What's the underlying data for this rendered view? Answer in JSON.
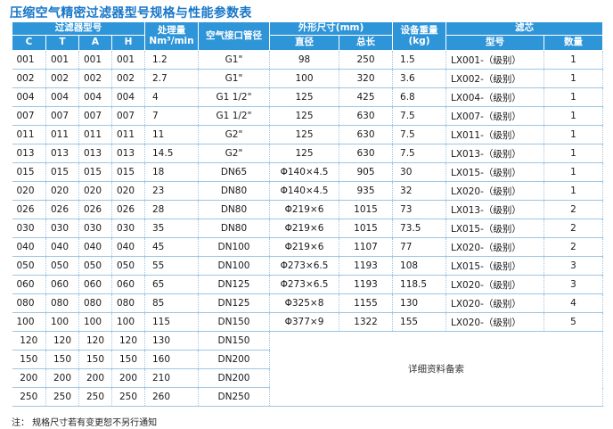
{
  "title": "压缩空气精密过滤器型号规格与性能参数表",
  "headers": {
    "filter_model": "过滤器型号",
    "flow": "处理量",
    "flow_unit": "Nm³/min",
    "port": "空气接口管径",
    "dimensions": "外形尺寸(mm)",
    "diameter": "直径",
    "length": "总长",
    "weight": "设备重量",
    "weight_unit": "(kg)",
    "element": "滤芯",
    "element_model": "型号",
    "element_qty": "数量",
    "c": "C",
    "t": "T",
    "a": "A",
    "h": "H"
  },
  "rows": [
    {
      "c": "001",
      "t": "001",
      "a": "001",
      "h": "001",
      "flow": "1.2",
      "port": "G1\"",
      "dia": "98",
      "len": "250",
      "wt": "1.5",
      "model": "LX001-（级别）",
      "qty": "1"
    },
    {
      "c": "002",
      "t": "002",
      "a": "002",
      "h": "002",
      "flow": "2.7",
      "port": "G1\"",
      "dia": "100",
      "len": "320",
      "wt": "3.6",
      "model": "LX002-（级别）",
      "qty": "1"
    },
    {
      "c": "004",
      "t": "004",
      "a": "004",
      "h": "004",
      "flow": "4",
      "port": "G1 1/2\"",
      "dia": "125",
      "len": "425",
      "wt": "6.8",
      "model": "LX004-（级别）",
      "qty": "1"
    },
    {
      "c": "007",
      "t": "007",
      "a": "007",
      "h": "007",
      "flow": "7",
      "port": "G1 1/2\"",
      "dia": "125",
      "len": "630",
      "wt": "7.5",
      "model": "LX007-（级别）",
      "qty": "1"
    },
    {
      "c": "011",
      "t": "011",
      "a": "011",
      "h": "011",
      "flow": "11",
      "port": "G2\"",
      "dia": "125",
      "len": "630",
      "wt": "7.5",
      "model": "LX011-（级别）",
      "qty": "1"
    },
    {
      "c": "013",
      "t": "013",
      "a": "013",
      "h": "013",
      "flow": "14.5",
      "port": "G2\"",
      "dia": "125",
      "len": "630",
      "wt": "7.5",
      "model": "LX013-（级别）",
      "qty": "1"
    },
    {
      "c": "015",
      "t": "015",
      "a": "015",
      "h": "015",
      "flow": "18",
      "port": "DN65",
      "dia": "Φ140×4.5",
      "len": "905",
      "wt": "30",
      "model": "LX015-（级别）",
      "qty": "1"
    },
    {
      "c": "020",
      "t": "020",
      "a": "020",
      "h": "020",
      "flow": "23",
      "port": "DN80",
      "dia": "Φ140×4.5",
      "len": "935",
      "wt": "32",
      "model": "LX020-（级别）",
      "qty": "1"
    },
    {
      "c": "026",
      "t": "026",
      "a": "026",
      "h": "026",
      "flow": "28",
      "port": "DN80",
      "dia": "Φ219×6",
      "len": "1015",
      "wt": "73",
      "model": "LX013-（级别）",
      "qty": "2"
    },
    {
      "c": "030",
      "t": "030",
      "a": "030",
      "h": "030",
      "flow": "35",
      "port": "DN80",
      "dia": "Φ219×6",
      "len": "1015",
      "wt": "73.5",
      "model": "LX015-（级别）",
      "qty": "2"
    },
    {
      "c": "040",
      "t": "040",
      "a": "040",
      "h": "040",
      "flow": "45",
      "port": "DN100",
      "dia": "Φ219×6",
      "len": "1107",
      "wt": "77",
      "model": "LX020-（级别）",
      "qty": "2"
    },
    {
      "c": "050",
      "t": "050",
      "a": "050",
      "h": "050",
      "flow": "55",
      "port": "DN100",
      "dia": "Φ273×6.5",
      "len": "1193",
      "wt": "108",
      "model": "LX015-（级别）",
      "qty": "3"
    },
    {
      "c": "060",
      "t": "060",
      "a": "060",
      "h": "060",
      "flow": "65",
      "port": "DN125",
      "dia": "Φ273×6.5",
      "len": "1193",
      "wt": "118.5",
      "model": "LX020-（级别）",
      "qty": "3"
    },
    {
      "c": "080",
      "t": "080",
      "a": "080",
      "h": "080",
      "flow": "85",
      "port": "DN125",
      "dia": "Φ325×8",
      "len": "1155",
      "wt": "130",
      "model": "LX020-（级别）",
      "qty": "4"
    },
    {
      "c": "100",
      "t": "100",
      "a": "100",
      "h": "100",
      "flow": "115",
      "port": "DN150",
      "dia": "Φ377×9",
      "len": "1322",
      "wt": "155",
      "model": "LX020-（级别）",
      "qty": "5"
    }
  ],
  "extra_rows": [
    {
      "c": "120",
      "t": "120",
      "a": "120",
      "h": "120",
      "flow": "130",
      "port": "DN150"
    },
    {
      "c": "150",
      "t": "150",
      "a": "150",
      "h": "150",
      "flow": "160",
      "port": "DN200"
    },
    {
      "c": "200",
      "t": "200",
      "a": "200",
      "h": "200",
      "flow": "210",
      "port": "DN200"
    },
    {
      "c": "250",
      "t": "250",
      "a": "250",
      "h": "250",
      "flow": "260",
      "port": "DN250"
    }
  ],
  "extra_note": "详细资料备索",
  "footnote": "注：   规格尺寸若有变更恕不另行通知"
}
